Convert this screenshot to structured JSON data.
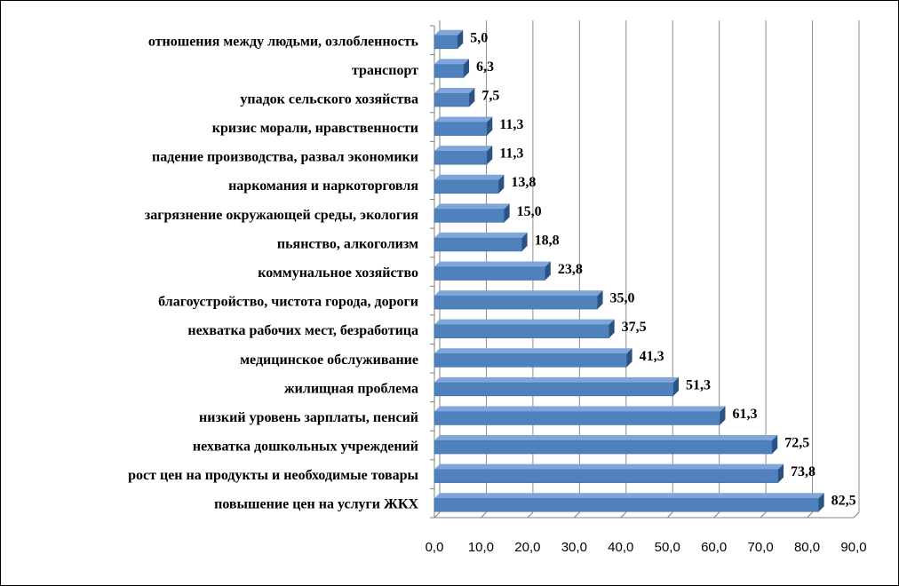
{
  "chart_data": {
    "type": "bar",
    "orientation": "horizontal",
    "style": "3d",
    "categories": [
      "повышение цен на услуги ЖКХ",
      "рост цен на продукты и необходимые товары",
      "нехватка дошкольных учреждений",
      "низкий уровень зарплаты, пенсий",
      "жилищная проблема",
      "медицинское обслуживание",
      "нехватка рабочих мест, безработица",
      "благоустройство, чистота города, дороги",
      "коммунальное хозяйство",
      "пьянство, алкоголизм",
      "загрязнение окружающей среды, экология",
      "наркомания и наркоторговля",
      "падение производства, развал экономики",
      "кризис морали, нравственности",
      "упадок сельского хозяйства",
      "транспорт",
      "отношения между людьми, озлобленность"
    ],
    "values": [
      82.5,
      73.8,
      72.5,
      61.3,
      51.3,
      41.3,
      37.5,
      35.0,
      23.8,
      18.8,
      15.0,
      13.8,
      11.3,
      11.3,
      7.5,
      6.3,
      5.0
    ],
    "value_labels": [
      "82,5",
      "73,8",
      "72,5",
      "61,3",
      "51,3",
      "41,3",
      "37,5",
      "35,0",
      "23,8",
      "18,8",
      "15,0",
      "13,8",
      "11,3",
      "11,3",
      "7,5",
      "6,3",
      "5,0"
    ],
    "xlim": [
      0,
      90
    ],
    "xticks": [
      "0,0",
      "10,0",
      "20,0",
      "30,0",
      "40,0",
      "50,0",
      "60,0",
      "70,0",
      "80,0",
      "90,0"
    ],
    "grid": true,
    "legend": "none",
    "title": "",
    "xlabel": "",
    "ylabel": "",
    "colors": {
      "bar_front": "#4f81bd",
      "bar_top": "#7ea6d8",
      "bar_side": "#2c5282",
      "grid": "#8c8c8c",
      "axis": "#808080"
    }
  }
}
